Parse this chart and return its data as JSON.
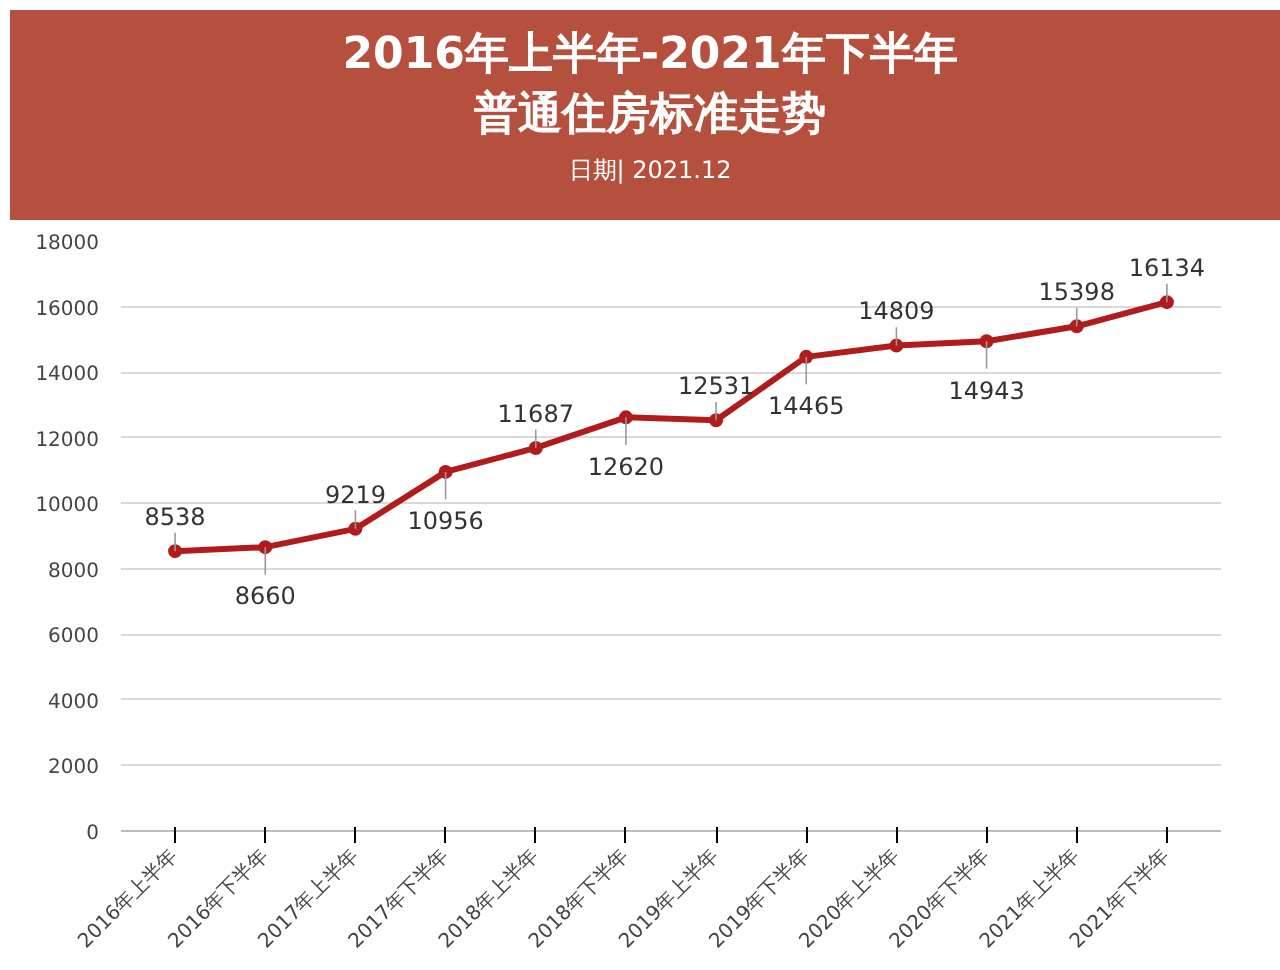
{
  "chart_data": {
    "type": "line",
    "title": "2016年上半年-2021年下半年",
    "subtitle": "普通住房标准走势",
    "annotations": [
      "日期| 2021.12"
    ],
    "categories": [
      "2016年上半年",
      "2016年下半年",
      "2017年上半年",
      "2017年下半年",
      "2018年上半年",
      "2018年下半年",
      "2019年上半年",
      "2019年下半年",
      "2020年上半年",
      "2020年下半年",
      "2021年上半年",
      "2021年下半年"
    ],
    "series": [
      {
        "color": "#b01c1c",
        "values": [
          8538,
          8660,
          9219,
          10956,
          11687,
          12620,
          12531,
          14465,
          14809,
          14943,
          15398,
          16134
        ]
      }
    ],
    "ylim": [
      0,
      18000
    ],
    "yticks": [
      0,
      2000,
      4000,
      6000,
      8000,
      10000,
      12000,
      14000,
      16000,
      18000
    ],
    "grid": "y",
    "marker": "circle",
    "line_style": "solid",
    "data_labels": true
  }
}
